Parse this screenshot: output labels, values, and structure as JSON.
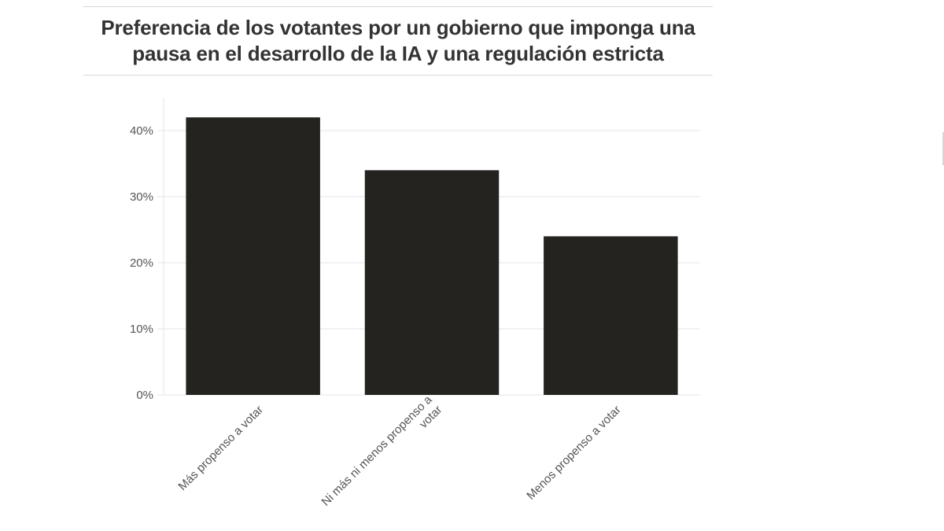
{
  "chart_data": {
    "type": "bar",
    "title": "Preferencia de los votantes por un gobierno que imponga una pausa en el desarrollo de la IA y una regulación estricta",
    "categories": [
      [
        "Más propenso a votar"
      ],
      [
        "Ni más ni menos propenso a",
        "votar"
      ],
      [
        "Menos propenso a votar"
      ]
    ],
    "values": [
      42,
      34,
      24
    ],
    "ylim": [
      0,
      45
    ],
    "yticks": [
      0,
      10,
      20,
      30,
      40
    ],
    "ytick_labels": [
      "0%",
      "10%",
      "20%",
      "30%",
      "40%"
    ],
    "grid": true,
    "bar_color": "#252320",
    "grid_color": "#e6e6e6"
  }
}
